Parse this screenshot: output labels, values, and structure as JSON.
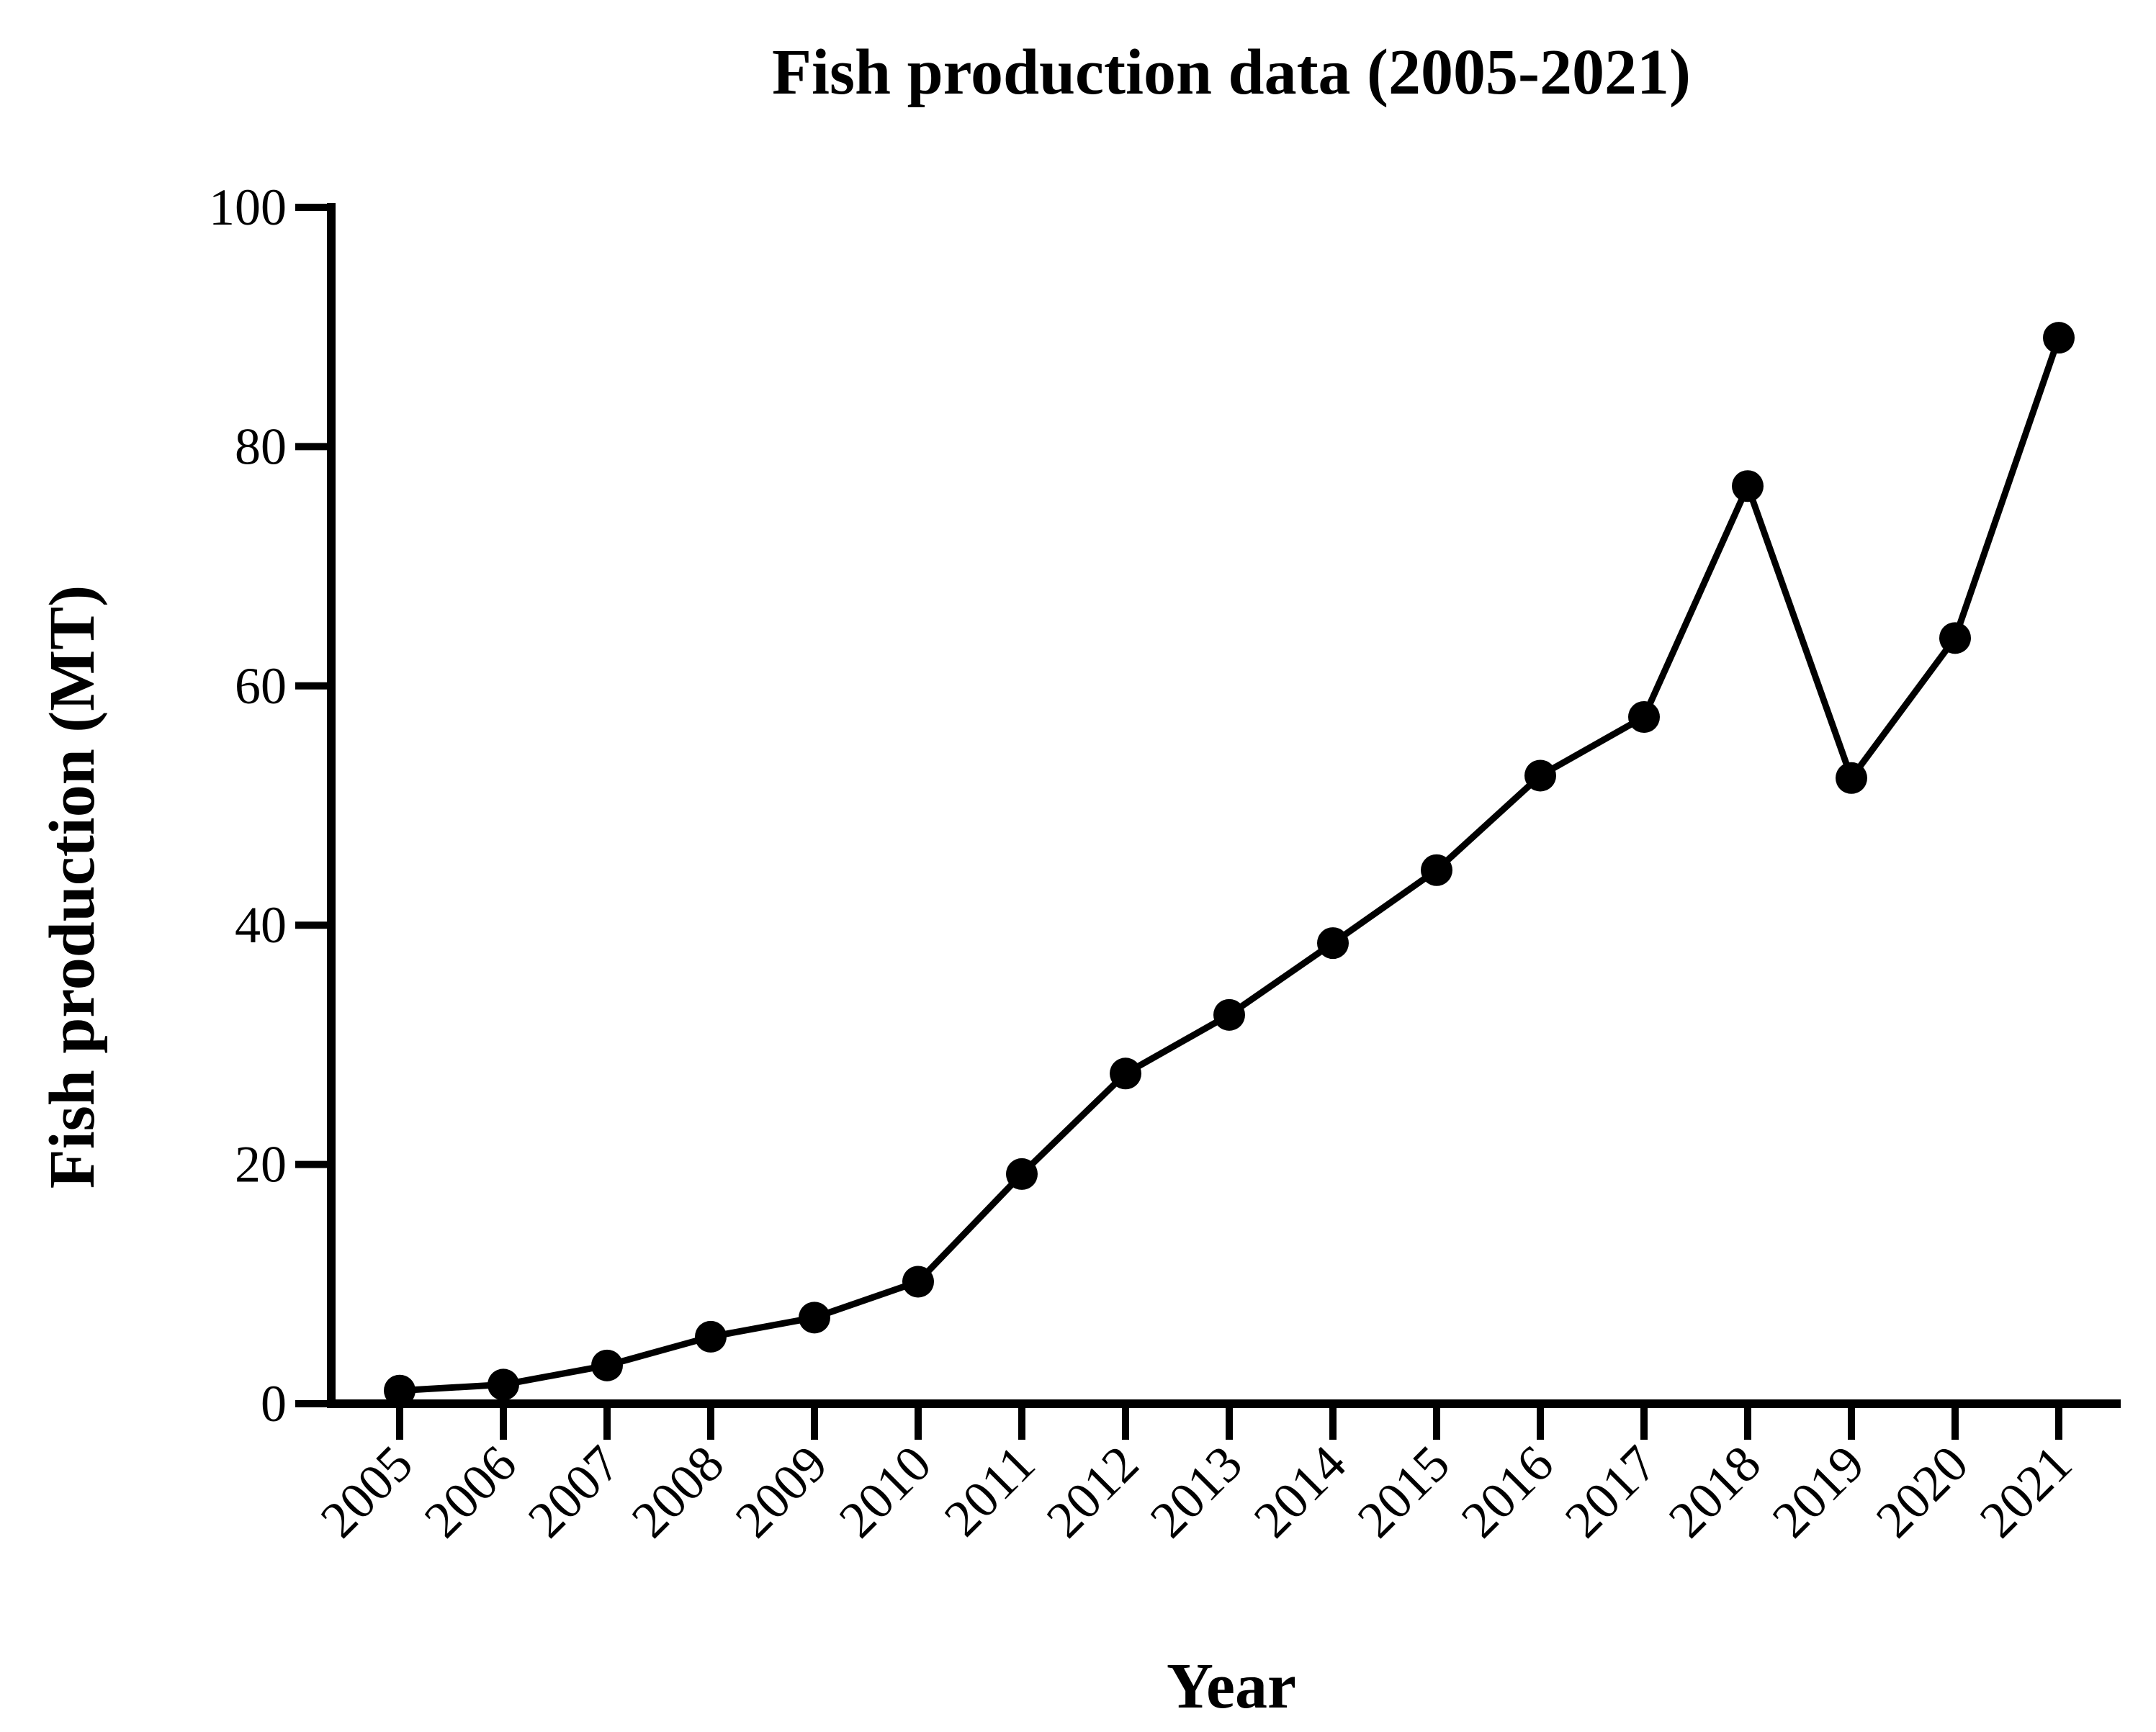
{
  "chart_data": {
    "type": "line",
    "title": "Fish production data (2005-2021)",
    "xlabel": "Year",
    "ylabel": "Fish production (MT)",
    "ylim": [
      0,
      100
    ],
    "yticks": [
      "0",
      "20",
      "40",
      "60",
      "80",
      "100"
    ],
    "categories": [
      "2005",
      "2006",
      "2007",
      "2008",
      "2009",
      "2010",
      "2011",
      "2012",
      "2013",
      "2014",
      "2015",
      "2016",
      "2017",
      "2018",
      "2019",
      "2020",
      "2021"
    ],
    "series": [
      {
        "values": [
          1.1,
          1.6,
          3.2,
          5.6,
          7.2,
          10.2,
          19.2,
          27.6,
          32.5,
          38.5,
          44.6,
          52.5,
          57.4,
          76.7,
          52.3,
          64.0,
          89.1
        ]
      }
    ],
    "grid": false,
    "legend": "none",
    "colors": {
      "line": "#000000",
      "marker": "#000000",
      "axis": "#000000"
    }
  }
}
